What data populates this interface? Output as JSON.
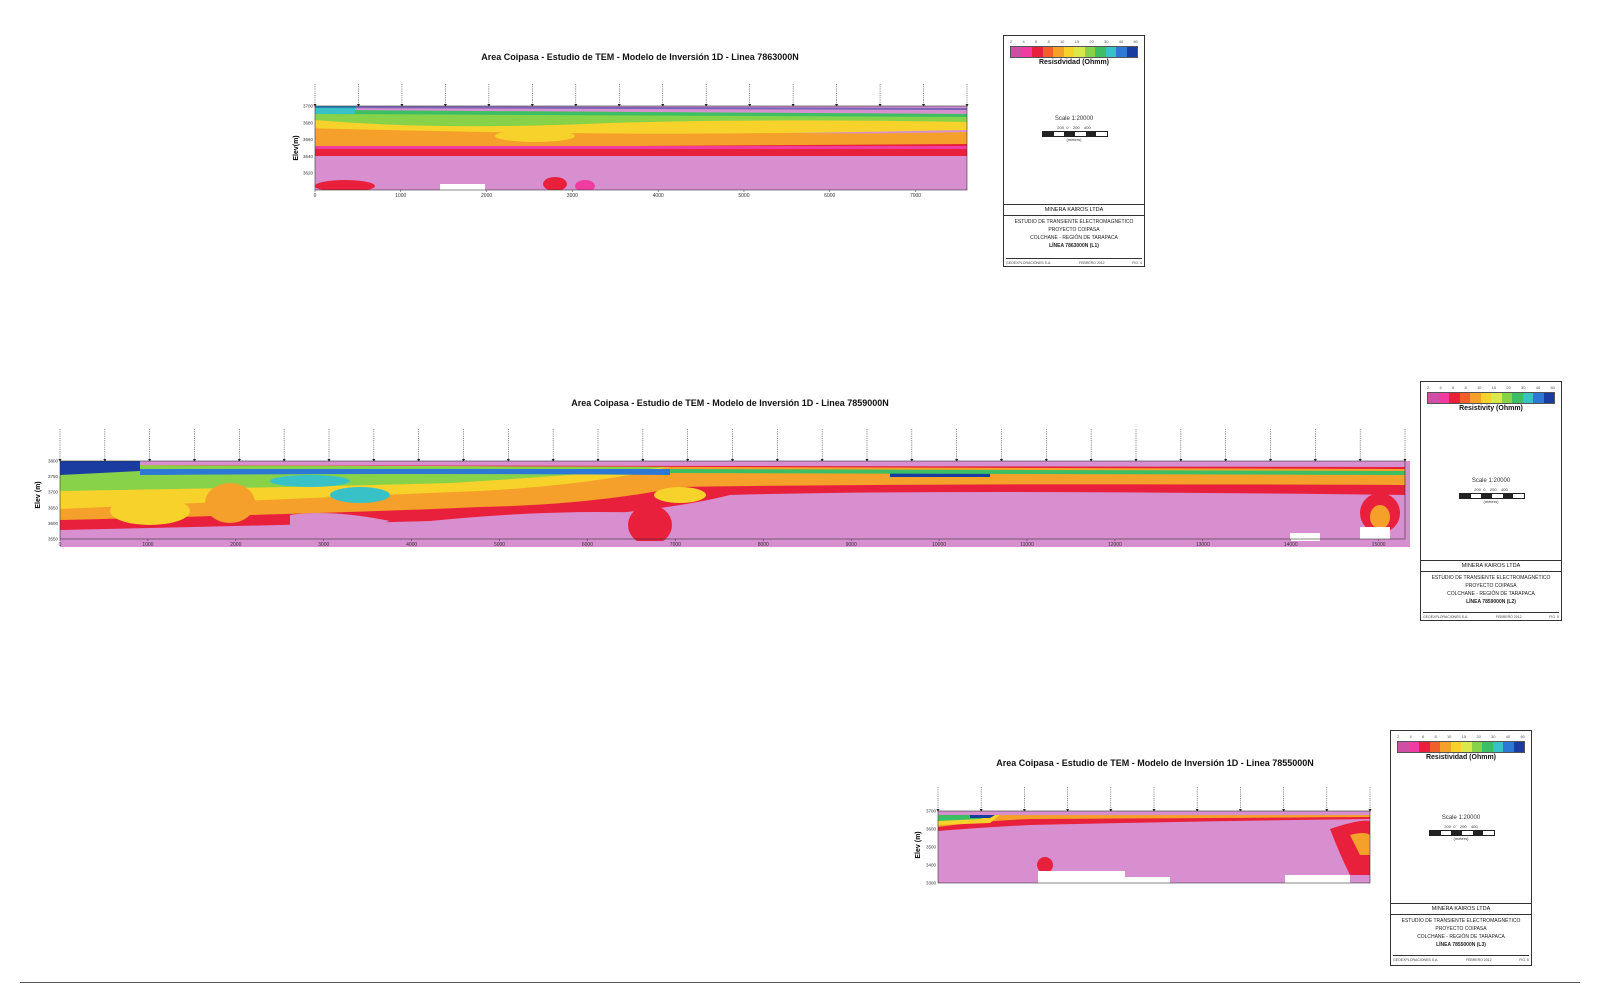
{
  "colorbar": {
    "colors": [
      "#d04fa4",
      "#f03ca0",
      "#e8203c",
      "#f0602a",
      "#f4a02a",
      "#f6d22a",
      "#d9e84a",
      "#88d24a",
      "#3cbf64",
      "#38c2c8",
      "#2c78d4",
      "#1a3ca0"
    ],
    "ticks": [
      "2",
      "4",
      "6",
      "8",
      "10",
      "15",
      "20",
      "30",
      "40",
      "60"
    ]
  },
  "chart_data": [
    {
      "type": "heatmap",
      "title": "Area Coipasa - Estudio de TEM - Modelo de Inversión 1D - Linea 7863000N",
      "ylabel": "Elev(m)",
      "xlim": [
        0,
        7600
      ],
      "ylim": [
        3600,
        3700
      ],
      "x_ticks": [
        "0",
        "1000",
        "2000",
        "3000",
        "4000",
        "5000",
        "6000",
        "7000"
      ],
      "y_ticks": [
        "3700",
        "3680",
        "3660",
        "3640",
        "3620"
      ],
      "station_count": 16,
      "title_block": {
        "colorbar_label": "Resisdvidad (Ohmm)",
        "scale": "Scale 1:20000",
        "scale_ticks": [
          "200",
          "0",
          "200",
          "400"
        ],
        "scale_unit": "(meters)",
        "company": "MINERA KAIROS LTDA",
        "line1": "ESTUDIO DE TRANSIENTE ELECTROMAGNÉTICO",
        "line2": "PROYECTO COIPASA",
        "line3": "COLCHANE - REGIÓN DE TARAPACA",
        "line4": "LÍNEA 7863000N (L1)",
        "foot": [
          "GEOEXPLORACIONES S.A.",
          "FEBRERO 2012",
          "FIG. 4"
        ]
      }
    },
    {
      "type": "heatmap",
      "title": "Area Coipasa - Estudio de TEM - Modelo de Inversión 1D - Linea 7859000N",
      "ylabel": "Elev (m)",
      "xlim": [
        0,
        15300
      ],
      "ylim": [
        3550,
        3800
      ],
      "x_ticks": [
        "0",
        "1000",
        "2000",
        "3000",
        "4000",
        "5000",
        "6000",
        "7000",
        "8000",
        "9000",
        "10000",
        "11000",
        "12000",
        "13000",
        "14000",
        "15000"
      ],
      "y_ticks": [
        "3800",
        "3750",
        "3700",
        "3650",
        "3600",
        "3550"
      ],
      "station_count": 31,
      "title_block": {
        "colorbar_label": "Resistivity (Ohmm)",
        "scale": "Scale 1:20000",
        "scale_ticks": [
          "200",
          "0",
          "200",
          "400"
        ],
        "scale_unit": "(meters)",
        "company": "MINERA KAIROS LTDA",
        "line1": "ESTUDIO DE TRANSIENTE ELECTROMAGNÉTICO",
        "line2": "PROYECTO COIPASA",
        "line3": "COLCHANE - REGIÓN DE TARAPACA",
        "line4": "LÍNEA 7859000N (L2)",
        "foot": [
          "GEOEXPLORACIONES S.A.",
          "FEBRERO 2012",
          "FIG. 5"
        ]
      }
    },
    {
      "type": "heatmap",
      "title": "Area Coipasa - Estudio de TEM - Modelo de Inversión 1D - Linea 7855000N",
      "ylabel": "Elev (m)",
      "xlim": [
        0,
        5000
      ],
      "ylim": [
        3300,
        3700
      ],
      "x_ticks": [],
      "y_ticks": [
        "3700",
        "3600",
        "3500",
        "3400",
        "3300"
      ],
      "station_count": 11,
      "title_block": {
        "colorbar_label": "Resistividad (Ohmm)",
        "scale": "Scale 1:20000",
        "scale_ticks": [
          "200",
          "0",
          "200",
          "400"
        ],
        "scale_unit": "(meters)",
        "company": "MINERA KAIROS LTDA",
        "line1": "ESTUDIO DE TRANSIENTE ELECTROMAGNÉTICO",
        "line2": "PROYECTO COIPASA",
        "line3": "COLCHANE - REGIÓN DE TARAPACA",
        "line4": "LÍNEA 7855000N (L3)",
        "foot": [
          "GEOEXPLORACIONES S.A.",
          "FEBRERO 2012",
          "FIG. 6"
        ]
      }
    }
  ]
}
